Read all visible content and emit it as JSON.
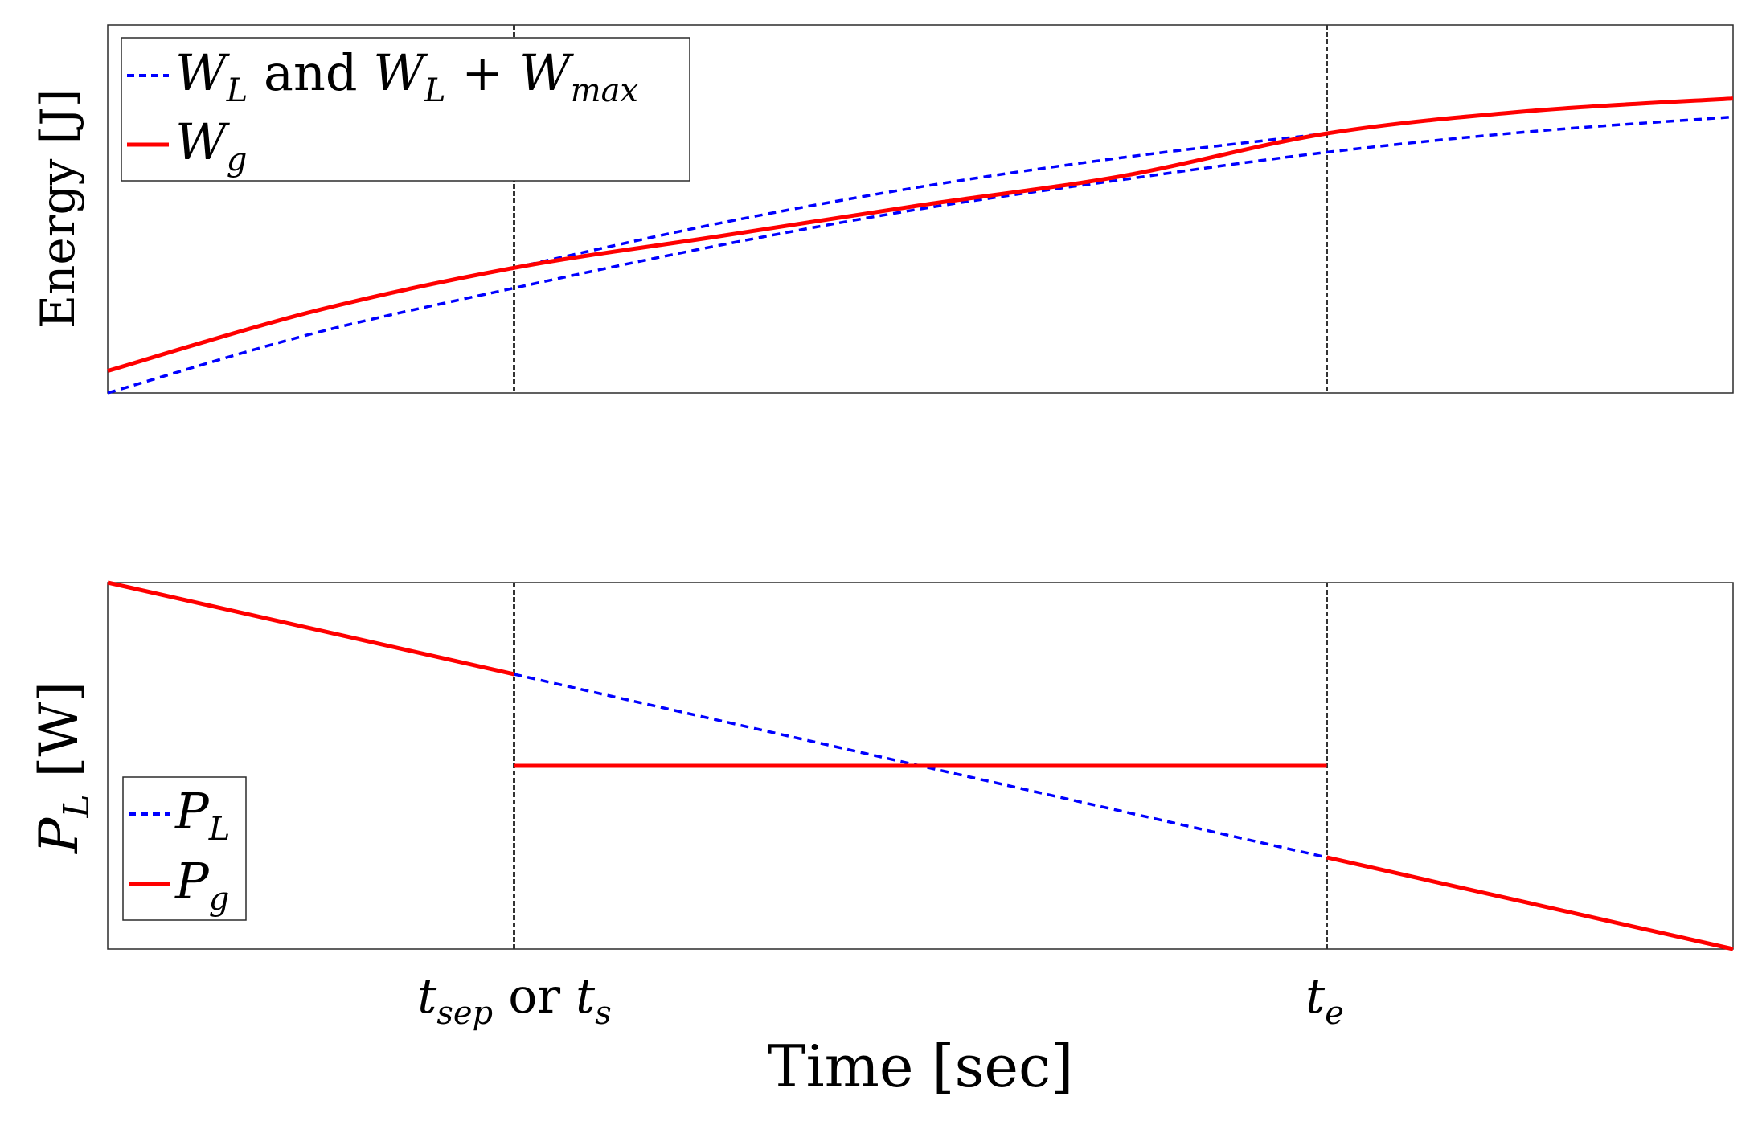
{
  "chart_data": [
    {
      "type": "line",
      "panel": "top",
      "ylabel": "Energy [J]",
      "xlabel": "",
      "x_range": [
        0,
        100
      ],
      "y_range": [
        0,
        100
      ],
      "grid": false,
      "legend_location": "top-left",
      "legend": [
        {
          "series": "W_L",
          "label_parts": [
            "W",
            "L",
            " and ",
            "W",
            "L",
            " + ",
            "W",
            "max"
          ]
        },
        {
          "series": "W_g",
          "label_parts": [
            "W",
            "g"
          ]
        }
      ],
      "vertical_markers": [
        25,
        75
      ],
      "series": [
        {
          "name": "W_L",
          "style": "dashed",
          "color": "#0000ff",
          "x": [
            0,
            12.5,
            25,
            37.5,
            50,
            62.5,
            75,
            87.5,
            100
          ],
          "y": [
            0,
            16,
            28.5,
            40,
            50,
            58,
            65.4,
            71,
            75
          ]
        },
        {
          "name": "W_L + W_max",
          "style": "dashed",
          "color": "#0000ff",
          "x": [
            25,
            37.5,
            50,
            62.5,
            75
          ],
          "y": [
            34,
            46,
            56,
            64,
            70.5
          ]
        },
        {
          "name": "W_g",
          "style": "solid",
          "color": "#ff0000",
          "x": [
            0,
            12.5,
            25,
            37.5,
            50,
            62.5,
            75,
            87.5,
            100
          ],
          "y": [
            6,
            22,
            34,
            42.5,
            51,
            59,
            70.5,
            76.6,
            80
          ]
        }
      ]
    },
    {
      "type": "line",
      "panel": "bottom",
      "ylabel_parts": [
        "P",
        "L",
        " [W]"
      ],
      "xlabel": "Time [sec]",
      "x_range": [
        0,
        100
      ],
      "y_range": [
        0,
        100
      ],
      "grid": false,
      "legend_location": "bottom-left",
      "legend": [
        {
          "series": "P_L",
          "label_parts": [
            "P",
            "L"
          ]
        },
        {
          "series": "P_g",
          "label_parts": [
            "P",
            "g"
          ]
        }
      ],
      "vertical_markers": [
        25,
        75
      ],
      "xtick_labels": [
        {
          "x": 25,
          "parts": [
            "t",
            "sep",
            " or ",
            "t",
            "s"
          ]
        },
        {
          "x": 75,
          "parts": [
            "t",
            "e"
          ]
        }
      ],
      "series": [
        {
          "name": "P_L",
          "style": "dashed",
          "color": "#0000ff",
          "x": [
            25,
            75
          ],
          "y": [
            75,
            25
          ]
        },
        {
          "name": "P_g",
          "style": "solid",
          "color": "#ff0000",
          "segments": [
            {
              "x": [
                0,
                25
              ],
              "y": [
                100,
                75
              ]
            },
            {
              "x": [
                25,
                75
              ],
              "y": [
                50,
                50
              ]
            },
            {
              "x": [
                75,
                100
              ],
              "y": [
                25,
                0
              ]
            }
          ]
        }
      ]
    }
  ]
}
